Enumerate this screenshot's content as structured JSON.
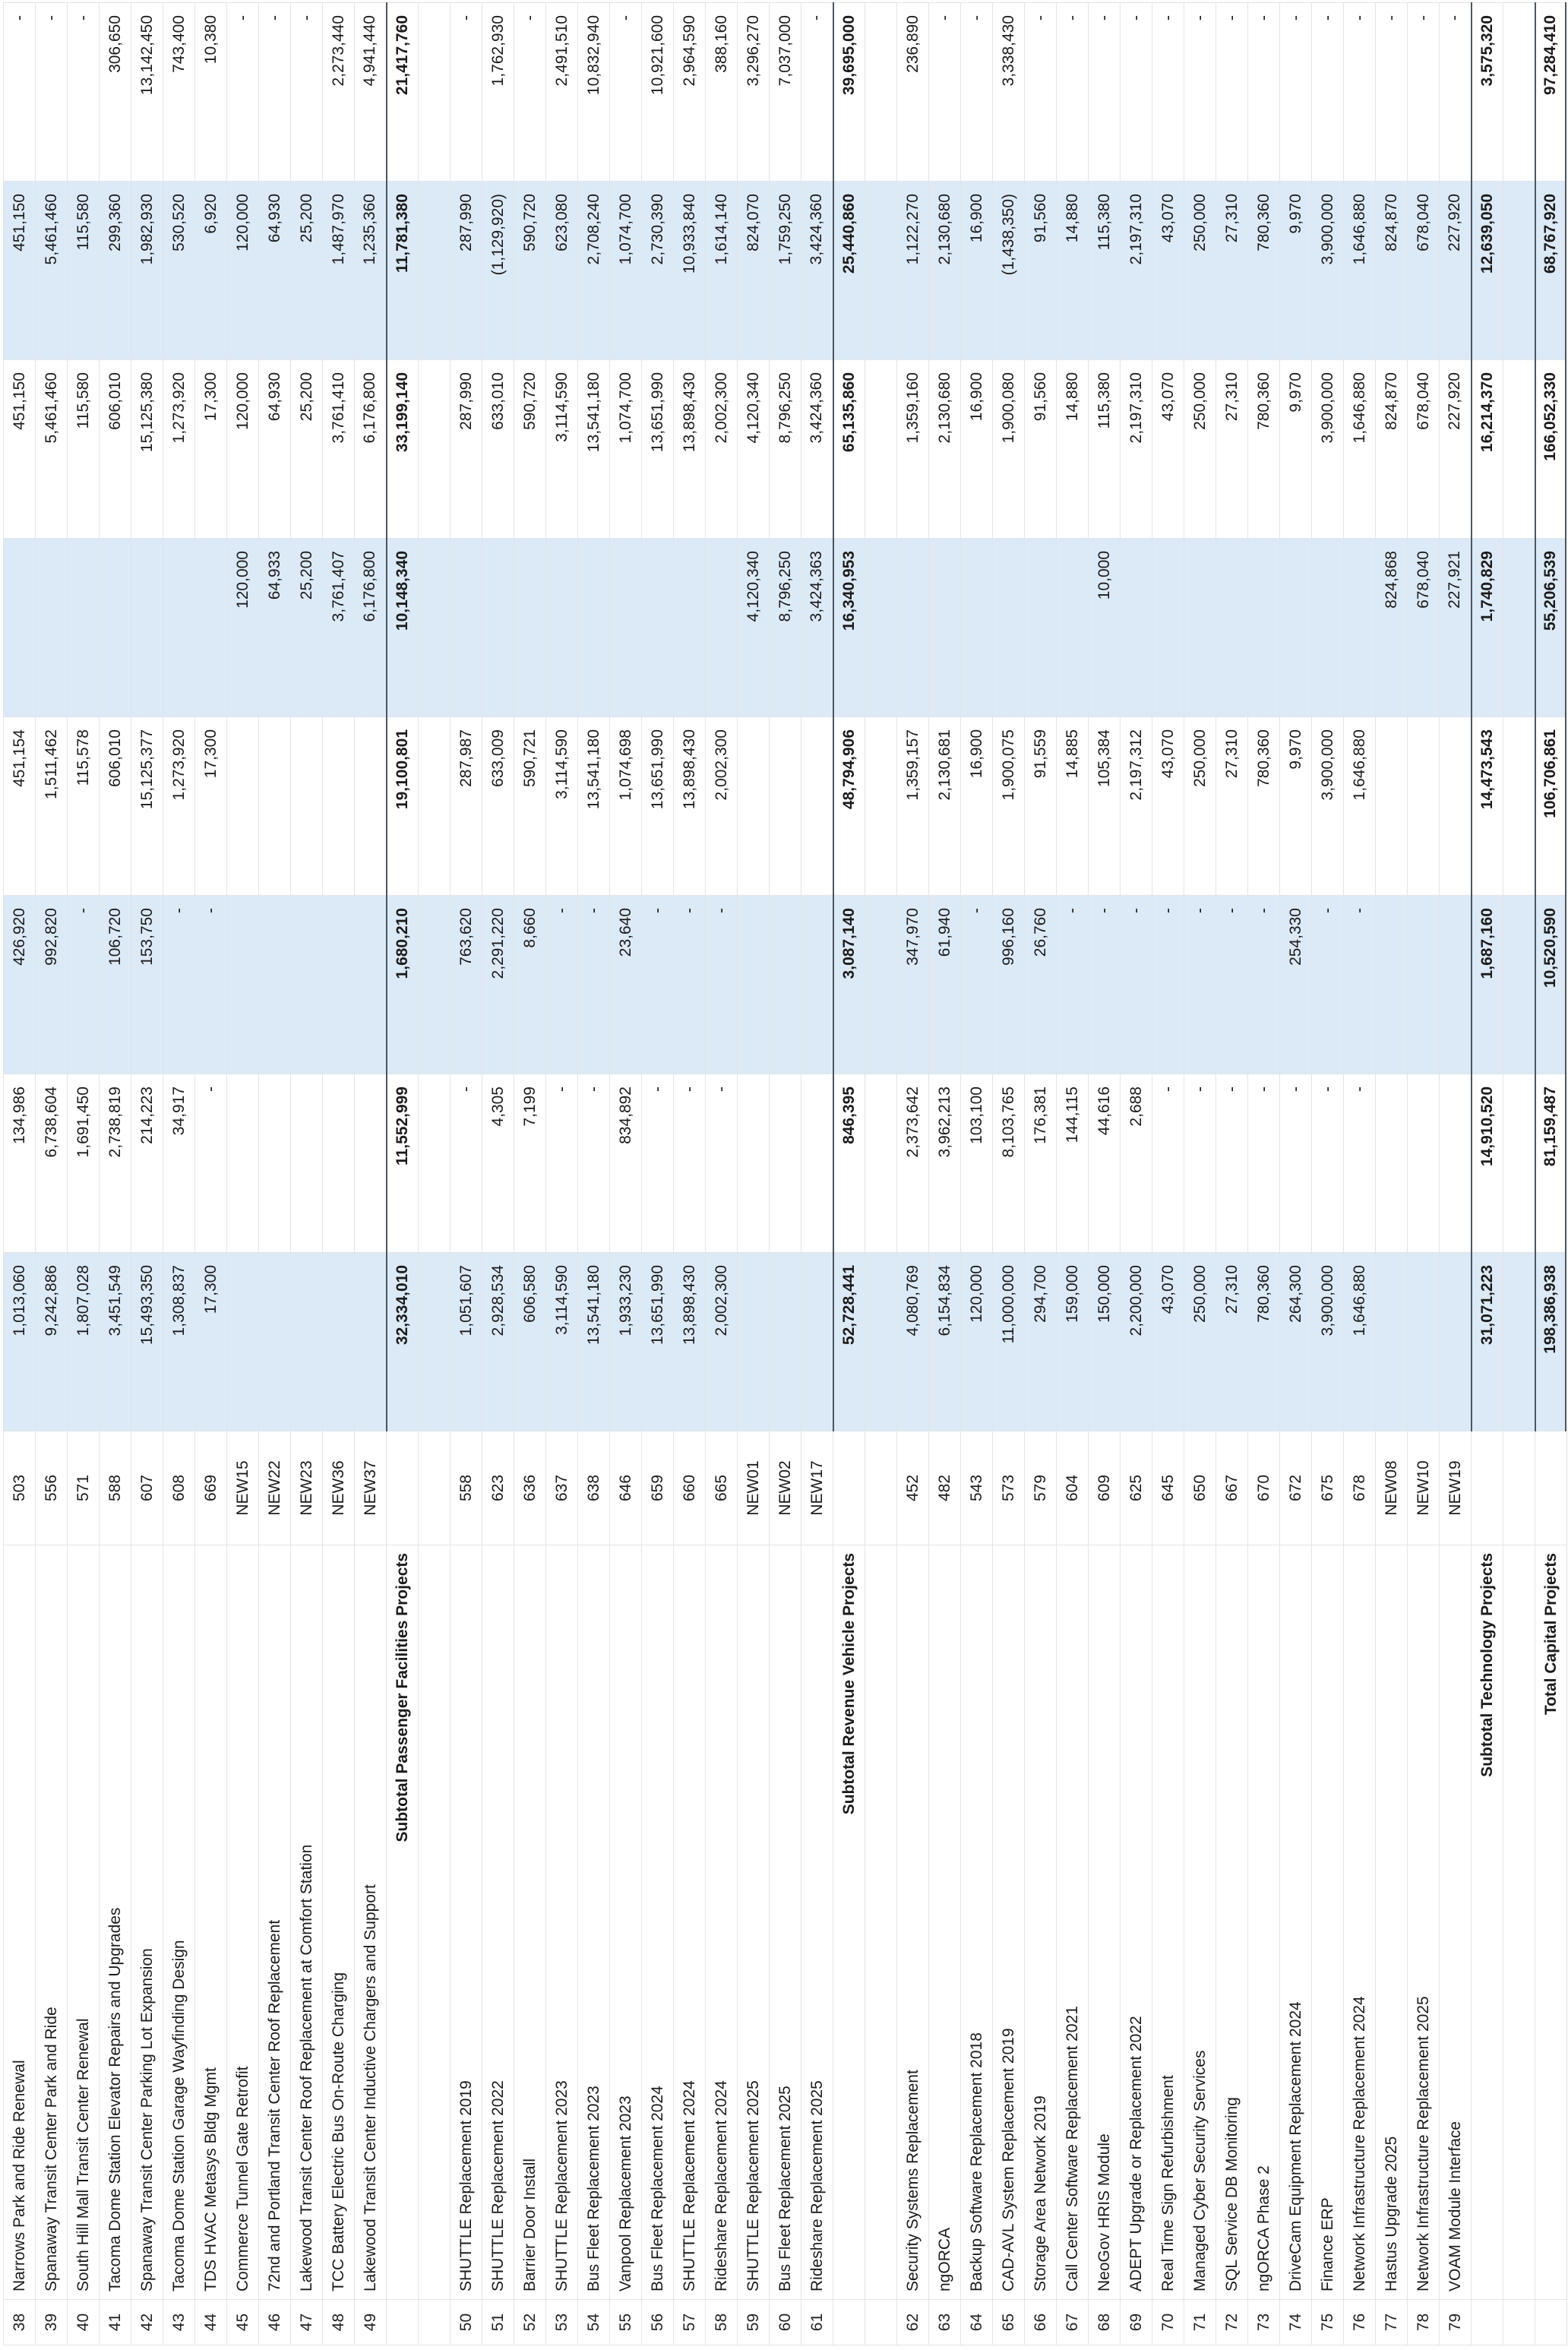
{
  "style": {
    "accent_fill": "#dce9f6",
    "grid_line": "#e1e5ea"
  },
  "table": {
    "sections": [
      {
        "name": "passenger_facilities",
        "rows": [
          {
            "num": "38",
            "name": "Narrows Park and Ride Renewal",
            "id": "503",
            "values": [
              "1,013,060",
              "134,986",
              "426,920",
              "451,154",
              "",
              "451,150",
              "451,150",
              "-"
            ]
          },
          {
            "num": "39",
            "name": "Spanaway Transit Center Park and Ride",
            "id": "556",
            "values": [
              "9,242,886",
              "6,738,604",
              "992,820",
              "1,511,462",
              "",
              "5,461,460",
              "5,461,460",
              "-"
            ]
          },
          {
            "num": "40",
            "name": "South Hill Mall Transit Center Renewal",
            "id": "571",
            "values": [
              "1,807,028",
              "1,691,450",
              "-",
              "115,578",
              "",
              "115,580",
              "115,580",
              "-"
            ]
          },
          {
            "num": "41",
            "name": "Tacoma Dome Station Elevator Repairs and Upgrades",
            "id": "588",
            "values": [
              "3,451,549",
              "2,738,819",
              "106,720",
              "606,010",
              "",
              "606,010",
              "299,360",
              "306,650"
            ]
          },
          {
            "num": "42",
            "name": "Spanaway Transit Center Parking Lot Expansion",
            "id": "607",
            "values": [
              "15,493,350",
              "214,223",
              "153,750",
              "15,125,377",
              "",
              "15,125,380",
              "1,982,930",
              "13,142,450"
            ]
          },
          {
            "num": "43",
            "name": "Tacoma Dome Station Garage Wayfinding Design",
            "id": "608",
            "values": [
              "1,308,837",
              "34,917",
              "-",
              "1,273,920",
              "",
              "1,273,920",
              "530,520",
              "743,400"
            ]
          },
          {
            "num": "44",
            "name": "TDS HVAC Metasys Bldg Mgmt",
            "id": "669",
            "values": [
              "17,300",
              "-",
              "-",
              "17,300",
              "",
              "17,300",
              "6,920",
              "10,380"
            ]
          },
          {
            "num": "45",
            "name": "Commerce Tunnel Gate Retrofit",
            "id": "NEW15",
            "values": [
              "",
              "",
              "",
              "",
              "120,000",
              "120,000",
              "120,000",
              "-"
            ]
          },
          {
            "num": "46",
            "name": "72nd and Portland Transit Center Roof Replacement",
            "id": "NEW22",
            "values": [
              "",
              "",
              "",
              "",
              "64,933",
              "64,930",
              "64,930",
              "-"
            ]
          },
          {
            "num": "47",
            "name": "Lakewood Transit Center Roof Replacement at Comfort Station",
            "id": "NEW23",
            "values": [
              "",
              "",
              "",
              "",
              "25,200",
              "25,200",
              "25,200",
              "-"
            ]
          },
          {
            "num": "48",
            "name": "TCC Battery Electric Bus On-Route Charging",
            "id": "NEW36",
            "values": [
              "",
              "",
              "",
              "",
              "3,761,407",
              "3,761,410",
              "1,487,970",
              "2,273,440"
            ]
          },
          {
            "num": "49",
            "name": "Lakewood Transit Center Inductive Chargers and Support",
            "id": "NEW37",
            "values": [
              "",
              "",
              "",
              "",
              "6,176,800",
              "6,176,800",
              "1,235,360",
              "4,941,440"
            ]
          }
        ],
        "subtotal": {
          "label": "Subtotal Passenger Facilities Projects",
          "values": [
            "32,334,010",
            "11,552,999",
            "1,680,210",
            "19,100,801",
            "10,148,340",
            "33,199,140",
            "11,781,380",
            "21,417,760"
          ]
        }
      },
      {
        "name": "revenue_vehicles",
        "rows": [
          {
            "num": "50",
            "name": "SHUTTLE Replacement 2019",
            "id": "558",
            "values": [
              "1,051,607",
              "-",
              "763,620",
              "287,987",
              "",
              "287,990",
              "287,990",
              "-"
            ]
          },
          {
            "num": "51",
            "name": "SHUTTLE Replacement 2022",
            "id": "623",
            "values": [
              "2,928,534",
              "4,305",
              "2,291,220",
              "633,009",
              "",
              "633,010",
              "(1,129,920)",
              "1,762,930"
            ]
          },
          {
            "num": "52",
            "name": "Barrier Door Install",
            "id": "636",
            "values": [
              "606,580",
              "7,199",
              "8,660",
              "590,721",
              "",
              "590,720",
              "590,720",
              "-"
            ]
          },
          {
            "num": "53",
            "name": "SHUTTLE Replacement 2023",
            "id": "637",
            "values": [
              "3,114,590",
              "-",
              "-",
              "3,114,590",
              "",
              "3,114,590",
              "623,080",
              "2,491,510"
            ]
          },
          {
            "num": "54",
            "name": "Bus Fleet Replacement 2023",
            "id": "638",
            "values": [
              "13,541,180",
              "-",
              "-",
              "13,541,180",
              "",
              "13,541,180",
              "2,708,240",
              "10,832,940"
            ]
          },
          {
            "num": "55",
            "name": "Vanpool Replacement 2023",
            "id": "646",
            "values": [
              "1,933,230",
              "834,892",
              "23,640",
              "1,074,698",
              "",
              "1,074,700",
              "1,074,700",
              "-"
            ]
          },
          {
            "num": "56",
            "name": "Bus Fleet Replacement 2024",
            "id": "659",
            "values": [
              "13,651,990",
              "-",
              "-",
              "13,651,990",
              "",
              "13,651,990",
              "2,730,390",
              "10,921,600"
            ]
          },
          {
            "num": "57",
            "name": "SHUTTLE Replacement 2024",
            "id": "660",
            "values": [
              "13,898,430",
              "-",
              "-",
              "13,898,430",
              "",
              "13,898,430",
              "10,933,840",
              "2,964,590"
            ]
          },
          {
            "num": "58",
            "name": "Rideshare Replacement 2024",
            "id": "665",
            "values": [
              "2,002,300",
              "-",
              "-",
              "2,002,300",
              "",
              "2,002,300",
              "1,614,140",
              "388,160"
            ]
          },
          {
            "num": "59",
            "name": "SHUTTLE Replacement 2025",
            "id": "NEW01",
            "values": [
              "",
              "",
              "",
              "",
              "4,120,340",
              "4,120,340",
              "824,070",
              "3,296,270"
            ]
          },
          {
            "num": "60",
            "name": "Bus Fleet Replacement 2025",
            "id": "NEW02",
            "values": [
              "",
              "",
              "",
              "",
              "8,796,250",
              "8,796,250",
              "1,759,250",
              "7,037,000"
            ]
          },
          {
            "num": "61",
            "name": "Rideshare Replacement 2025",
            "id": "NEW17",
            "values": [
              "",
              "",
              "",
              "",
              "3,424,363",
              "3,424,360",
              "3,424,360",
              "-"
            ]
          }
        ],
        "subtotal": {
          "label": "Subtotal Revenue Vehicle Projects",
          "values": [
            "52,728,441",
            "846,395",
            "3,087,140",
            "48,794,906",
            "16,340,953",
            "65,135,860",
            "25,440,860",
            "39,695,000"
          ]
        }
      },
      {
        "name": "technology",
        "rows": [
          {
            "num": "62",
            "name": "Security Systems Replacement",
            "id": "452",
            "values": [
              "4,080,769",
              "2,373,642",
              "347,970",
              "1,359,157",
              "",
              "1,359,160",
              "1,122,270",
              "236,890"
            ]
          },
          {
            "num": "63",
            "name": "ngORCA",
            "id": "482",
            "values": [
              "6,154,834",
              "3,962,213",
              "61,940",
              "2,130,681",
              "",
              "2,130,680",
              "2,130,680",
              "-"
            ]
          },
          {
            "num": "64",
            "name": "Backup Software Replacement 2018",
            "id": "543",
            "values": [
              "120,000",
              "103,100",
              "-",
              "16,900",
              "",
              "16,900",
              "16,900",
              "-"
            ]
          },
          {
            "num": "65",
            "name": "CAD-AVL System Replacement 2019",
            "id": "573",
            "values": [
              "11,000,000",
              "8,103,765",
              "996,160",
              "1,900,075",
              "",
              "1,900,080",
              "(1,438,350)",
              "3,338,430"
            ]
          },
          {
            "num": "66",
            "name": "Storage Area Network 2019",
            "id": "579",
            "values": [
              "294,700",
              "176,381",
              "26,760",
              "91,559",
              "",
              "91,560",
              "91,560",
              "-"
            ]
          },
          {
            "num": "67",
            "name": "Call Center Software Replacement 2021",
            "id": "604",
            "values": [
              "159,000",
              "144,115",
              "-",
              "14,885",
              "",
              "14,880",
              "14,880",
              "-"
            ]
          },
          {
            "num": "68",
            "name": "NeoGov HRIS Module",
            "id": "609",
            "values": [
              "150,000",
              "44,616",
              "-",
              "105,384",
              "10,000",
              "115,380",
              "115,380",
              "-"
            ]
          },
          {
            "num": "69",
            "name": "ADEPT Upgrade or Replacement 2022",
            "id": "625",
            "values": [
              "2,200,000",
              "2,688",
              "-",
              "2,197,312",
              "",
              "2,197,310",
              "2,197,310",
              "-"
            ]
          },
          {
            "num": "70",
            "name": "Real Time Sign Refurbishment",
            "id": "645",
            "values": [
              "43,070",
              "-",
              "-",
              "43,070",
              "",
              "43,070",
              "43,070",
              "-"
            ]
          },
          {
            "num": "71",
            "name": "Managed Cyber Security Services",
            "id": "650",
            "values": [
              "250,000",
              "-",
              "-",
              "250,000",
              "",
              "250,000",
              "250,000",
              "-"
            ]
          },
          {
            "num": "72",
            "name": "SQL Service DB Monitoring",
            "id": "667",
            "values": [
              "27,310",
              "-",
              "-",
              "27,310",
              "",
              "27,310",
              "27,310",
              "-"
            ]
          },
          {
            "num": "73",
            "name": "ngORCA Phase 2",
            "id": "670",
            "values": [
              "780,360",
              "-",
              "-",
              "780,360",
              "",
              "780,360",
              "780,360",
              "-"
            ]
          },
          {
            "num": "74",
            "name": "DriveCam Equipment Replacement 2024",
            "id": "672",
            "values": [
              "264,300",
              "-",
              "254,330",
              "9,970",
              "",
              "9,970",
              "9,970",
              "-"
            ]
          },
          {
            "num": "75",
            "name": "Finance ERP",
            "id": "675",
            "values": [
              "3,900,000",
              "-",
              "-",
              "3,900,000",
              "",
              "3,900,000",
              "3,900,000",
              "-"
            ]
          },
          {
            "num": "76",
            "name": "Network Infrastructure Replacement 2024",
            "id": "678",
            "values": [
              "1,646,880",
              "-",
              "-",
              "1,646,880",
              "",
              "1,646,880",
              "1,646,880",
              "-"
            ]
          },
          {
            "num": "77",
            "name": "Hastus Upgrade 2025",
            "id": "NEW08",
            "values": [
              "",
              "",
              "",
              "",
              "824,868",
              "824,870",
              "824,870",
              "-"
            ]
          },
          {
            "num": "78",
            "name": "Network Infrastructure Replacement 2025",
            "id": "NEW10",
            "values": [
              "",
              "",
              "",
              "",
              "678,040",
              "678,040",
              "678,040",
              "-"
            ]
          },
          {
            "num": "79",
            "name": "VOAM Module Interface",
            "id": "NEW19",
            "values": [
              "",
              "",
              "",
              "",
              "227,921",
              "227,920",
              "227,920",
              "-"
            ]
          }
        ],
        "subtotal": {
          "label": "Subtotal Technology Projects",
          "values": [
            "31,071,223",
            "14,910,520",
            "1,687,160",
            "14,473,543",
            "1,740,829",
            "16,214,370",
            "12,639,050",
            "3,575,320"
          ]
        }
      }
    ],
    "total": {
      "label": "Total Capital Projects",
      "values": [
        "198,386,938",
        "81,159,487",
        "10,520,590",
        "106,706,861",
        "55,206,539",
        "166,052,330",
        "68,767,920",
        "97,284,410"
      ]
    }
  }
}
